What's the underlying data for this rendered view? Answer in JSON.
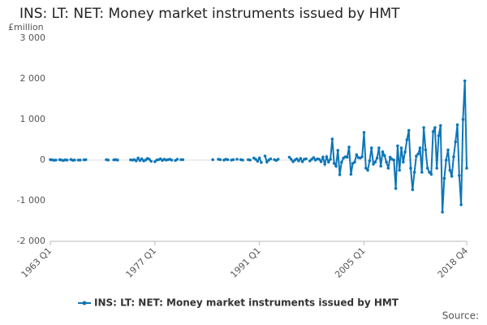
{
  "chart_data": {
    "type": "line",
    "title": "INS: LT: NET: Money market instruments issued by HMT",
    "ylabel": "£million",
    "source": "Source:",
    "categories": [
      "1963 Q1",
      null,
      null,
      null,
      null,
      null,
      null,
      null,
      null,
      null,
      null,
      null,
      null,
      null,
      null,
      null,
      null,
      null,
      null,
      null,
      null,
      null,
      null,
      null,
      null,
      null,
      null,
      null,
      null,
      null,
      null,
      null,
      null,
      null,
      null,
      null,
      null,
      null,
      null,
      null,
      null,
      null,
      null,
      null,
      null,
      null,
      null,
      null,
      null,
      null,
      null,
      null,
      null,
      null,
      null,
      null,
      "1977 Q1",
      null,
      null,
      null,
      null,
      null,
      null,
      null,
      null,
      null,
      null,
      null,
      null,
      null,
      null,
      null,
      null,
      null,
      null,
      null,
      null,
      null,
      null,
      null,
      null,
      null,
      null,
      null,
      null,
      null,
      null,
      null,
      null,
      null,
      null,
      null,
      null,
      null,
      null,
      null,
      null,
      null,
      null,
      null,
      null,
      null,
      null,
      null,
      null,
      null,
      null,
      null,
      null,
      null,
      null,
      null,
      "1991 Q1",
      null,
      null,
      null,
      null,
      null,
      null,
      null,
      null,
      null,
      null,
      null,
      null,
      null,
      null,
      null,
      null,
      null,
      null,
      null,
      null,
      null,
      null,
      null,
      null,
      null,
      null,
      null,
      null,
      null,
      null,
      null,
      null,
      null,
      null,
      null,
      null,
      null,
      null,
      null,
      null,
      null,
      null,
      null,
      null,
      null,
      null,
      null,
      null,
      null,
      null,
      null,
      null,
      null,
      null,
      null,
      "2005 Q1",
      null,
      null,
      null,
      null,
      null,
      null,
      null,
      null,
      null,
      null,
      null,
      null,
      null,
      null,
      null,
      null,
      null,
      null,
      null,
      null,
      null,
      null,
      null,
      null,
      null,
      null,
      null,
      null,
      null,
      null,
      null,
      null,
      null,
      null,
      null,
      null,
      null,
      null,
      null,
      null,
      null,
      null,
      null,
      null,
      null,
      null,
      null,
      null,
      null,
      null,
      null,
      null,
      null,
      null,
      "2018 Q4"
    ],
    "series": [
      {
        "name": "INS: LT: NET: Money market instruments issued by HMT",
        "color": "#0d76b8",
        "values": [
          10,
          5,
          -5,
          0,
          null,
          10,
          0,
          -10,
          5,
          0,
          null,
          15,
          -5,
          0,
          null,
          0,
          0,
          null,
          5,
          10,
          null,
          null,
          null,
          null,
          null,
          null,
          null,
          null,
          null,
          null,
          10,
          0,
          null,
          null,
          5,
          10,
          0,
          null,
          null,
          null,
          null,
          null,
          null,
          5,
          0,
          10,
          -20,
          50,
          -10,
          30,
          -20,
          0,
          40,
          20,
          -30,
          null,
          -40,
          0,
          10,
          30,
          -10,
          20,
          0,
          10,
          20,
          0,
          null,
          -10,
          20,
          null,
          10,
          10,
          null,
          null,
          null,
          null,
          null,
          null,
          null,
          null,
          null,
          null,
          null,
          null,
          null,
          null,
          null,
          10,
          null,
          null,
          20,
          10,
          null,
          0,
          20,
          10,
          null,
          0,
          10,
          null,
          20,
          null,
          10,
          0,
          null,
          null,
          10,
          0,
          null,
          50,
          20,
          -30,
          50,
          -60,
          null,
          100,
          -50,
          0,
          30,
          null,
          10,
          -10,
          20,
          null,
          null,
          null,
          null,
          null,
          70,
          20,
          -40,
          0,
          30,
          -20,
          40,
          -40,
          20,
          30,
          null,
          -20,
          20,
          60,
          0,
          30,
          20,
          -40,
          70,
          -100,
          80,
          -50,
          20,
          520,
          -80,
          -150,
          240,
          -360,
          -50,
          50,
          80,
          70,
          320,
          -350,
          -80,
          -50,
          130,
          60,
          50,
          80,
          680,
          -200,
          -250,
          -20,
          300,
          -100,
          -50,
          50,
          300,
          -150,
          200,
          110,
          -50,
          -200,
          70,
          20,
          0,
          -700,
          350,
          -250,
          300,
          -50,
          200,
          500,
          730,
          -200,
          -730,
          -300,
          100,
          150,
          300,
          -300,
          800,
          250,
          -200,
          -300,
          -350,
          700,
          800,
          -200,
          600,
          850,
          -1280,
          -450,
          0,
          250,
          -250,
          -400,
          80,
          450,
          870,
          -380,
          -1100,
          1000,
          1950,
          -200
        ]
      }
    ],
    "ylim": [
      -2000,
      3000
    ],
    "yticks": [
      {
        "value": 3000,
        "label": "3 000"
      },
      {
        "value": 2000,
        "label": "2 000"
      },
      {
        "value": 1000,
        "label": "1 000"
      },
      0,
      {
        "value": -1000,
        "label": "-1 000"
      },
      {
        "value": -2000,
        "label": "-2 000"
      }
    ],
    "legend": "bottom"
  }
}
